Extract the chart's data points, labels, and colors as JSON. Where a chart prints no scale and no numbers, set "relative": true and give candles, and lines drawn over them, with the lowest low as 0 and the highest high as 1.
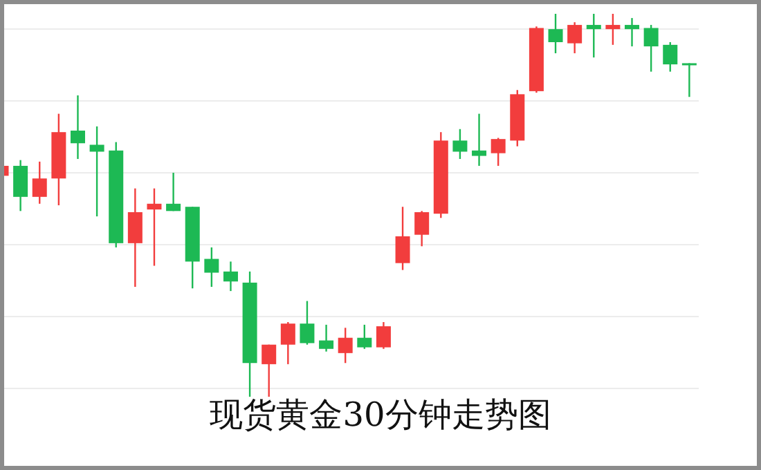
{
  "chart_data": {
    "type": "candlestick",
    "title": "现货黄金30分钟走势图",
    "relative": true,
    "grid": "y",
    "categories": [
      null,
      null,
      null,
      null,
      null,
      null,
      null,
      null,
      null,
      null,
      null,
      null,
      null,
      null,
      null,
      null,
      null,
      null,
      null,
      null,
      null,
      null,
      null,
      null,
      null,
      null,
      null,
      null,
      null,
      null,
      null,
      null,
      null,
      null,
      null,
      null,
      null
    ],
    "ohlc": [
      [
        0.577,
        0.607,
        0.574,
        0.603
      ],
      [
        0.603,
        0.618,
        0.485,
        0.522
      ],
      [
        0.522,
        0.614,
        0.504,
        0.57
      ],
      [
        0.57,
        0.739,
        0.5,
        0.691
      ],
      [
        0.695,
        0.787,
        0.621,
        0.662
      ],
      [
        0.658,
        0.706,
        0.471,
        0.64
      ],
      [
        0.643,
        0.665,
        0.39,
        0.401
      ],
      [
        0.401,
        0.544,
        0.287,
        0.482
      ],
      [
        0.489,
        0.544,
        0.342,
        0.504
      ],
      [
        0.504,
        0.585,
        0.485,
        0.485
      ],
      [
        0.496,
        0.496,
        0.283,
        0.353
      ],
      [
        0.36,
        0.39,
        0.287,
        0.324
      ],
      [
        0.327,
        0.353,
        0.276,
        0.301
      ],
      [
        0.298,
        0.327,
        0,
        0.088
      ],
      [
        0.085,
        0.136,
        0,
        0.136
      ],
      [
        0.136,
        0.195,
        0.085,
        0.191
      ],
      [
        0.191,
        0.25,
        0.136,
        0.14
      ],
      [
        0.147,
        0.188,
        0.118,
        0.125
      ],
      [
        0.114,
        0.18,
        0.088,
        0.154
      ],
      [
        0.154,
        0.188,
        0.125,
        0.129
      ],
      [
        0.129,
        0.195,
        0.125,
        0.184
      ],
      [
        0.349,
        0.496,
        0.331,
        0.419
      ],
      [
        0.423,
        0.485,
        0.393,
        0.482
      ],
      [
        0.478,
        0.691,
        0.467,
        0.669
      ],
      [
        0.669,
        0.699,
        0.621,
        0.64
      ],
      [
        0.643,
        0.739,
        0.603,
        0.629
      ],
      [
        0.636,
        0.676,
        0.603,
        0.673
      ],
      [
        0.669,
        0.801,
        0.654,
        0.79
      ],
      [
        0.798,
        0.967,
        0.794,
        0.963
      ],
      [
        0.96,
        1.0,
        0.897,
        0.926
      ],
      [
        0.923,
        0.978,
        0.897,
        0.971
      ],
      [
        0.971,
        1.0,
        0.886,
        0.96
      ],
      [
        0.96,
        1.0,
        0.919,
        0.971
      ],
      [
        0.971,
        0.989,
        0.915,
        0.96
      ],
      [
        0.963,
        0.971,
        0.849,
        0.915
      ],
      [
        0.919,
        0.926,
        0.849,
        0.868
      ],
      [
        0.871,
        0.871,
        0.783,
        0.868
      ]
    ],
    "colors": [
      "#f23d3d",
      "#1db954",
      "#f23d3d",
      "#f23d3d",
      "#1db954",
      "#1db954",
      "#1db954",
      "#f23d3d",
      "#f23d3d",
      "#1db954",
      "#1db954",
      "#1db954",
      "#1db954",
      "#1db954",
      "#f23d3d",
      "#f23d3d",
      "#1db954",
      "#1db954",
      "#f23d3d",
      "#1db954",
      "#f23d3d",
      "#f23d3d",
      "#f23d3d",
      "#f23d3d",
      "#1db954",
      "#1db954",
      "#f23d3d",
      "#f23d3d",
      "#f23d3d",
      "#1db954",
      "#f23d3d",
      "#1db954",
      "#f23d3d",
      "#1db954",
      "#1db954",
      "#1db954",
      "#1db954"
    ]
  }
}
